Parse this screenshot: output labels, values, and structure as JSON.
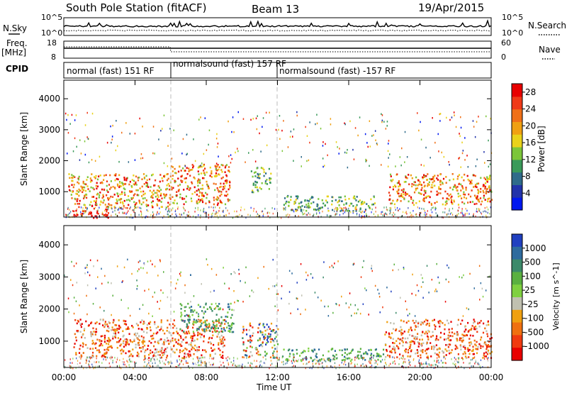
{
  "header": {
    "station": "South Pole Station (fitACF)",
    "beam": "Beam 13",
    "date": "19/Apr/2015"
  },
  "side_labels": {
    "nsky": "N.Sky",
    "freq": "Freq.",
    "mhz": "[MHz]",
    "cpid": "CPID",
    "nsearch": "N.Search",
    "nave": "Nave"
  },
  "strip_ticks": {
    "nsky_left": [
      "10^5",
      "10^0"
    ],
    "nsearch_right": [
      "10^5",
      "10^0"
    ],
    "freq_left": [
      "18",
      "8"
    ],
    "nave_right": [
      "60",
      "0"
    ]
  },
  "cpid_segments": [
    {
      "label": "normal (fast) 151 RF",
      "start_hour": 0,
      "end_hour": 6
    },
    {
      "label": "normalsound (fast) 157 RF",
      "start_hour": 6,
      "end_hour": 12
    },
    {
      "label": "normalsound (fast) -157 RF",
      "start_hour": 12,
      "end_hour": 24
    }
  ],
  "time_axis": {
    "ticks": [
      "00:00",
      "04:00",
      "08:00",
      "12:00",
      "16:00",
      "20:00",
      "00:00"
    ],
    "label": "Time UT"
  },
  "chart_data": [
    {
      "type": "heatmap",
      "title": "",
      "xlabel": "Time UT",
      "ylabel": "Slant Range [km]",
      "xlim": [
        0,
        24
      ],
      "ylim": [
        180,
        4600
      ],
      "yticks": [
        "1000",
        "2000",
        "3000",
        "4000"
      ],
      "colorbar": {
        "label": "Power [dB]",
        "ticks": [
          "4",
          "8",
          "12",
          "16",
          "20",
          "24",
          "28"
        ],
        "range": [
          0,
          30
        ],
        "colors": [
          "#0018f0",
          "#2233aa",
          "#2f6b8a",
          "#3a9a5a",
          "#7cc63a",
          "#e9d21a",
          "#f0a012",
          "#f07018",
          "#f03a18",
          "#e80000"
        ]
      },
      "echo_regions": [
        {
          "t_start": 0.2,
          "t_end": 6.0,
          "r_start": 500,
          "r_end": 1600,
          "level": "high"
        },
        {
          "t_start": 6.0,
          "t_end": 9.3,
          "r_start": 600,
          "r_end": 1900,
          "level": "high"
        },
        {
          "t_start": 0.5,
          "t_end": 2.5,
          "r_start": 180,
          "r_end": 500,
          "level": "very high"
        },
        {
          "t_start": 10.5,
          "t_end": 11.6,
          "r_start": 1000,
          "r_end": 1800,
          "level": "medium"
        },
        {
          "t_start": 12.2,
          "t_end": 17.5,
          "r_start": 400,
          "r_end": 900,
          "level": "medium"
        },
        {
          "t_start": 18.2,
          "t_end": 24.0,
          "r_start": 600,
          "r_end": 1600,
          "level": "high"
        }
      ]
    },
    {
      "type": "heatmap",
      "title": "",
      "xlabel": "Time UT",
      "ylabel": "Slant Range [km]",
      "xlim": [
        0,
        24
      ],
      "ylim": [
        180,
        4600
      ],
      "yticks": [
        "1000",
        "2000",
        "3000",
        "4000"
      ],
      "colorbar": {
        "label": "Velocity [m s^-1]",
        "ticks": [
          "1000",
          "500",
          "100",
          "25",
          "-25",
          "-100",
          "-500",
          "-1000"
        ],
        "range": [
          -1000,
          1000
        ],
        "colors": [
          "#2040c0",
          "#2e6b9e",
          "#3c8a6a",
          "#5ab040",
          "#7fd040",
          "#c0c0b0",
          "#f0a010",
          "#f07010",
          "#f03a10",
          "#e80000"
        ]
      },
      "echo_regions": [
        {
          "t_start": 0.5,
          "t_end": 9.0,
          "r_start": 500,
          "r_end": 1700,
          "level": "negative"
        },
        {
          "t_start": 6.5,
          "t_end": 9.5,
          "r_start": 1300,
          "r_end": 2200,
          "level": "positive"
        },
        {
          "t_start": 10.0,
          "t_end": 12.0,
          "r_start": 500,
          "r_end": 1600,
          "level": "mixed"
        },
        {
          "t_start": 12.2,
          "t_end": 18.0,
          "r_start": 400,
          "r_end": 800,
          "level": "positive"
        },
        {
          "t_start": 18.0,
          "t_end": 24.0,
          "r_start": 500,
          "r_end": 1700,
          "level": "negative"
        }
      ]
    }
  ]
}
